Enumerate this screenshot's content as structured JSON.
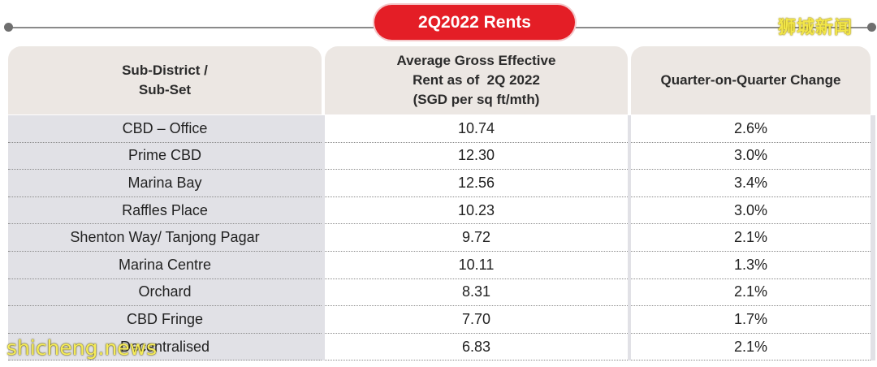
{
  "title": "2Q2022 Rents",
  "watermark_top": "狮城新闻",
  "watermark_bottom": "shicheng.news",
  "headers": {
    "col1": [
      "Sub-District /",
      "Sub-Set"
    ],
    "col2": [
      "Average Gross Effective",
      "Rent as of  2Q 2022",
      "(SGD per sq ft/mth)"
    ],
    "col3": [
      "Quarter-on-Quarter Change"
    ]
  },
  "rows": [
    {
      "district": "CBD – Office",
      "rent": "10.74",
      "change": "2.6%"
    },
    {
      "district": "Prime CBD",
      "rent": "12.30",
      "change": "3.0%"
    },
    {
      "district": "Marina Bay",
      "rent": "12.56",
      "change": "3.4%"
    },
    {
      "district": "Raffles Place",
      "rent": "10.23",
      "change": "3.0%"
    },
    {
      "district": "Shenton Way/ Tanjong Pagar",
      "rent": "9.72",
      "change": "2.1%"
    },
    {
      "district": "Marina Centre",
      "rent": "10.11",
      "change": "1.3%"
    },
    {
      "district": "Orchard",
      "rent": "8.31",
      "change": "2.1%"
    },
    {
      "district": "CBD Fringe",
      "rent": "7.70",
      "change": "1.7%"
    },
    {
      "district": "Decentralised",
      "rent": "6.83",
      "change": "2.1%"
    }
  ],
  "colors": {
    "accent": "#e41e26",
    "header_bg": "#ece7e3",
    "first_col_bg": "#e1e1e6"
  }
}
